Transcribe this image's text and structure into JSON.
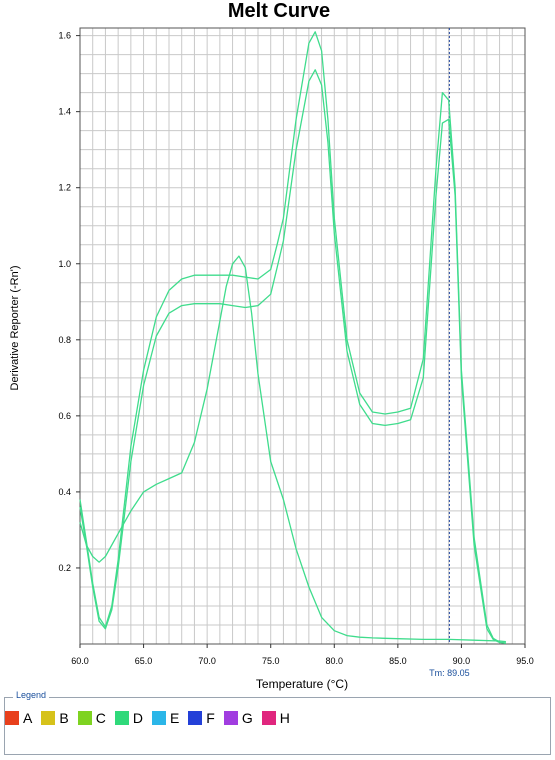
{
  "chart_data": {
    "type": "line",
    "title": "Melt Curve",
    "xlabel": "Temperature (°C)",
    "ylabel": "Derivative Reporter (-Rn')",
    "xlim": [
      60.0,
      95.0
    ],
    "ylim": [
      0.0,
      1.62
    ],
    "x_ticks": [
      "60.0",
      "65.0",
      "70.0",
      "75.0",
      "80.0",
      "85.0",
      "90.0",
      "95.0"
    ],
    "y_ticks": [
      "0.2",
      "0.4",
      "0.6",
      "0.8",
      "1.0",
      "1.2",
      "1.4",
      "1.6"
    ],
    "grid": true,
    "marker": {
      "x": 89.05,
      "label": "Tm: 89.05"
    },
    "series_color": "#3fdc8c",
    "series": [
      {
        "x": [
          60.0,
          60.5,
          61.0,
          61.5,
          62.0,
          62.5,
          63.0,
          64.0,
          65.0,
          66.0,
          67.0,
          68.0,
          69.0,
          70.0,
          71.0,
          72.0,
          73.0,
          74.0,
          75.0,
          75.5,
          76.0,
          77.0,
          78.0,
          78.5,
          79.0,
          79.5,
          80.0,
          81.0,
          82.0,
          83.0,
          84.0,
          85.0,
          86.0,
          87.0,
          88.0,
          88.5,
          89.0,
          89.5,
          90.0,
          91.0,
          92.0,
          92.5,
          93.0,
          93.5
        ],
        "values": [
          0.38,
          0.27,
          0.16,
          0.07,
          0.045,
          0.1,
          0.22,
          0.52,
          0.72,
          0.86,
          0.93,
          0.96,
          0.97,
          0.97,
          0.97,
          0.97,
          0.965,
          0.96,
          0.985,
          1.05,
          1.12,
          1.38,
          1.58,
          1.61,
          1.56,
          1.38,
          1.12,
          0.8,
          0.66,
          0.61,
          0.605,
          0.61,
          0.62,
          0.75,
          1.25,
          1.45,
          1.43,
          1.2,
          0.72,
          0.28,
          0.05,
          0.015,
          0.005,
          0.002
        ]
      },
      {
        "x": [
          60.0,
          60.5,
          61.0,
          61.5,
          62.0,
          62.5,
          63.0,
          64.0,
          65.0,
          66.0,
          67.0,
          68.0,
          69.0,
          70.0,
          71.0,
          72.0,
          73.0,
          74.0,
          75.0,
          75.5,
          76.0,
          77.0,
          78.0,
          78.5,
          79.0,
          79.5,
          80.0,
          81.0,
          82.0,
          83.0,
          84.0,
          85.0,
          86.0,
          87.0,
          88.0,
          88.5,
          89.0,
          89.5,
          90.0,
          91.0,
          92.0,
          92.5,
          93.0,
          93.5
        ],
        "values": [
          0.36,
          0.26,
          0.15,
          0.06,
          0.04,
          0.09,
          0.2,
          0.48,
          0.68,
          0.81,
          0.87,
          0.89,
          0.895,
          0.895,
          0.895,
          0.89,
          0.885,
          0.89,
          0.92,
          0.99,
          1.06,
          1.3,
          1.48,
          1.51,
          1.47,
          1.32,
          1.08,
          0.77,
          0.63,
          0.58,
          0.575,
          0.58,
          0.59,
          0.7,
          1.18,
          1.37,
          1.38,
          1.18,
          0.7,
          0.26,
          0.04,
          0.012,
          0.004,
          0.002
        ]
      },
      {
        "x": [
          60.0,
          60.5,
          61.0,
          61.5,
          62.0,
          63.0,
          64.0,
          65.0,
          66.0,
          67.0,
          68.0,
          69.0,
          70.0,
          71.0,
          71.5,
          72.0,
          72.5,
          73.0,
          73.5,
          74.0,
          75.0,
          76.0,
          77.0,
          78.0,
          79.0,
          80.0,
          81.0,
          82.0,
          83.0,
          85.0,
          87.0,
          89.0,
          91.0,
          93.0,
          93.5
        ],
        "values": [
          0.32,
          0.26,
          0.23,
          0.215,
          0.23,
          0.29,
          0.35,
          0.4,
          0.42,
          0.435,
          0.45,
          0.53,
          0.67,
          0.85,
          0.94,
          1.0,
          1.02,
          0.99,
          0.87,
          0.71,
          0.48,
          0.38,
          0.25,
          0.15,
          0.07,
          0.035,
          0.022,
          0.018,
          0.016,
          0.014,
          0.012,
          0.012,
          0.01,
          0.008,
          0.006
        ]
      }
    ]
  },
  "legend": {
    "title": "Legend",
    "items": [
      {
        "label": "A",
        "color": "#e8401c"
      },
      {
        "label": "B",
        "color": "#d6c21a"
      },
      {
        "label": "C",
        "color": "#7ed321"
      },
      {
        "label": "D",
        "color": "#2fd97a"
      },
      {
        "label": "E",
        "color": "#2bb6e8"
      },
      {
        "label": "F",
        "color": "#2340d8"
      },
      {
        "label": "G",
        "color": "#a13de0"
      },
      {
        "label": "H",
        "color": "#e0267e"
      }
    ]
  }
}
